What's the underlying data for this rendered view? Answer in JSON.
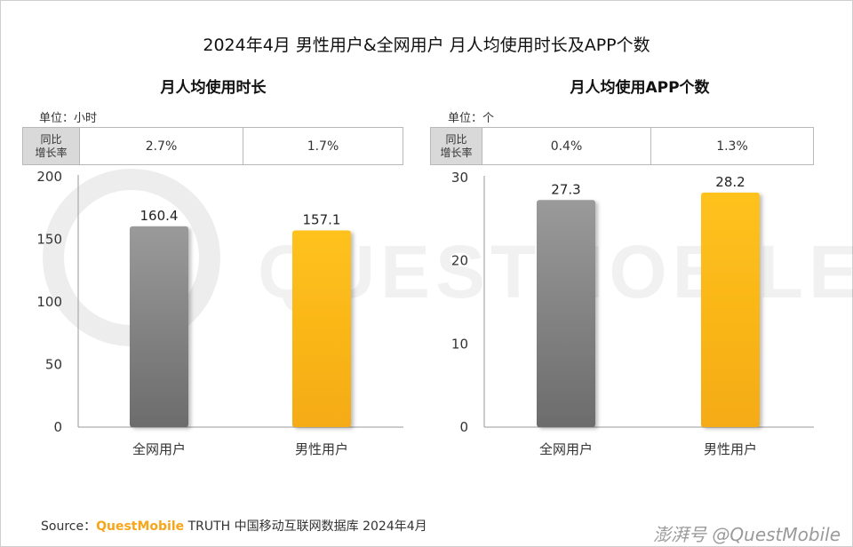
{
  "title": "2024年4月 男性用户&全网用户 月人均使用时长及APP个数",
  "watermark_text": "QUESTMOBILE",
  "colors": {
    "gray_top": "#9a9a9a",
    "gray_bottom": "#6c6c6c",
    "gold_top": "#ffc21e",
    "gold_bottom": "#f5ab12"
  },
  "source": {
    "prefix": "Source：",
    "brand": "QuestMobile",
    "suffix": " TRUTH 中国移动互联网数据库 2024年4月"
  },
  "credit": "澎湃号 @QuestMobile",
  "panels": [
    {
      "subtitle": "月人均使用时长",
      "unit": "单位：小时",
      "yoy_header": [
        "同比",
        "增长率"
      ],
      "yoy": [
        "2.7%",
        "1.7%"
      ]
    },
    {
      "subtitle": "月人均使用APP个数",
      "unit": "单位：个",
      "yoy_header": [
        "同比",
        "增长率"
      ],
      "yoy": [
        "0.4%",
        "1.3%"
      ]
    }
  ],
  "chart_data": [
    {
      "type": "bar",
      "title": "月人均使用时长",
      "categories": [
        "全网用户",
        "男性用户"
      ],
      "values": [
        160.4,
        157.1
      ],
      "value_labels": [
        "160.4",
        "157.1"
      ],
      "ylim": [
        0,
        200
      ],
      "yticks": [
        0,
        50,
        100,
        150,
        200
      ],
      "ylabel": "单位：小时"
    },
    {
      "type": "bar",
      "title": "月人均使用APP个数",
      "categories": [
        "全网用户",
        "男性用户"
      ],
      "values": [
        27.3,
        28.2
      ],
      "value_labels": [
        "27.3",
        "28.2"
      ],
      "ylim": [
        0,
        30
      ],
      "yticks": [
        0,
        10,
        20,
        30
      ],
      "ylabel": "单位：个"
    }
  ]
}
